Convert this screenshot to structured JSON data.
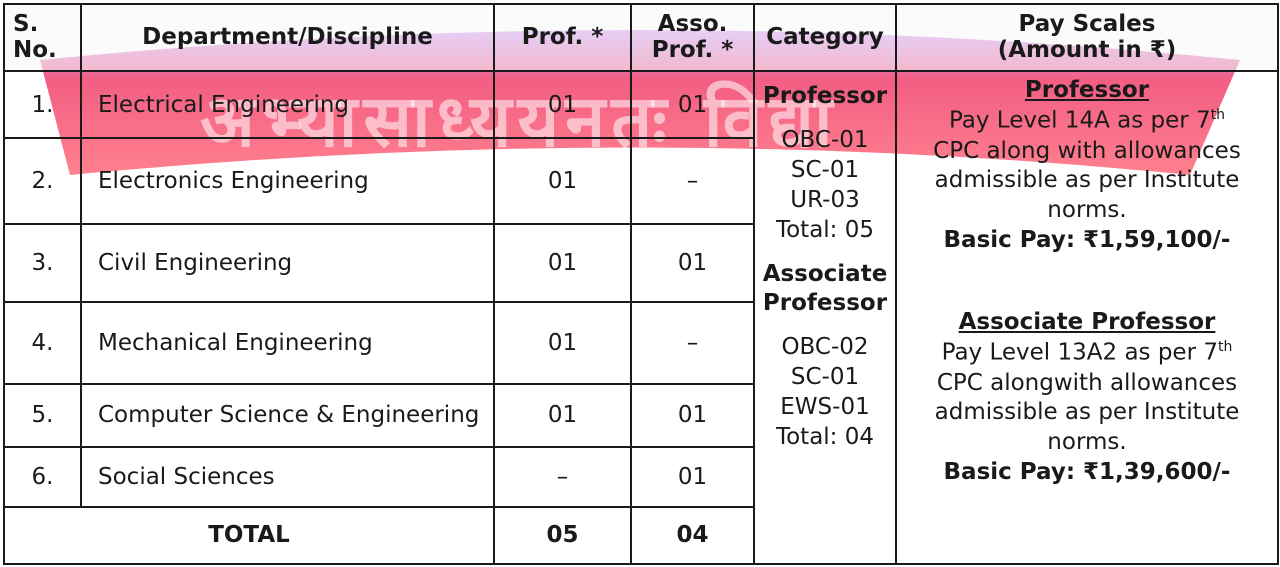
{
  "watermark": {
    "text": "अभ्यासाध्ययनतः विद्या",
    "colors": {
      "top": "#c98bf0",
      "mid": "#f0426d",
      "bottom": "#ff6a7a"
    }
  },
  "table": {
    "headers": {
      "sno": [
        "S.",
        "No."
      ],
      "dept": "Department/Discipline",
      "prof": "Prof. *",
      "asso": [
        "Asso.",
        "Prof. *"
      ],
      "category": "Category",
      "pay": [
        "Pay Scales",
        "(Amount in ₹)"
      ]
    },
    "rows": [
      {
        "sno": "1.",
        "dept": "Electrical Engineering",
        "prof": "01",
        "asso": "01"
      },
      {
        "sno": "2.",
        "dept": "Electronics Engineering",
        "prof": "01",
        "asso": "–"
      },
      {
        "sno": "3.",
        "dept": "Civil Engineering",
        "prof": "01",
        "asso": "01"
      },
      {
        "sno": "4.",
        "dept": "Mechanical Engineering",
        "prof": "01",
        "asso": "–"
      },
      {
        "sno": "5.",
        "dept": "Computer Science & Engineering",
        "prof": "01",
        "asso": "01"
      },
      {
        "sno": "6.",
        "dept": "Social Sciences",
        "prof": "–",
        "asso": "01"
      }
    ],
    "total": {
      "label": "TOTAL",
      "prof": "05",
      "asso": "04"
    },
    "category": {
      "professor": {
        "title": "Professor",
        "lines": [
          "OBC-01",
          "SC-01",
          "UR-03",
          "Total: 05"
        ]
      },
      "associate": {
        "title": [
          "Associate",
          "Professor"
        ],
        "lines": [
          "OBC-02",
          "SC-01",
          "EWS-01",
          "Total: 04"
        ]
      }
    },
    "pay": {
      "professor": {
        "title": "Professor",
        "line1": "Pay Level 14A as per 7",
        "line1_sup": "th",
        "line2": "CPC along with allowances",
        "line3": "admissible as per Institute",
        "line4": "norms.",
        "basic": "Basic Pay: ₹1,59,100/-"
      },
      "associate": {
        "title": "Associate Professor",
        "line1": "Pay Level 13A2 as per 7",
        "line1_sup": "th",
        "line2": "CPC alongwith allowances",
        "line3": "admissible as per Institute",
        "line4": "norms.",
        "basic": "Basic Pay: ₹1,39,600/-"
      }
    }
  }
}
